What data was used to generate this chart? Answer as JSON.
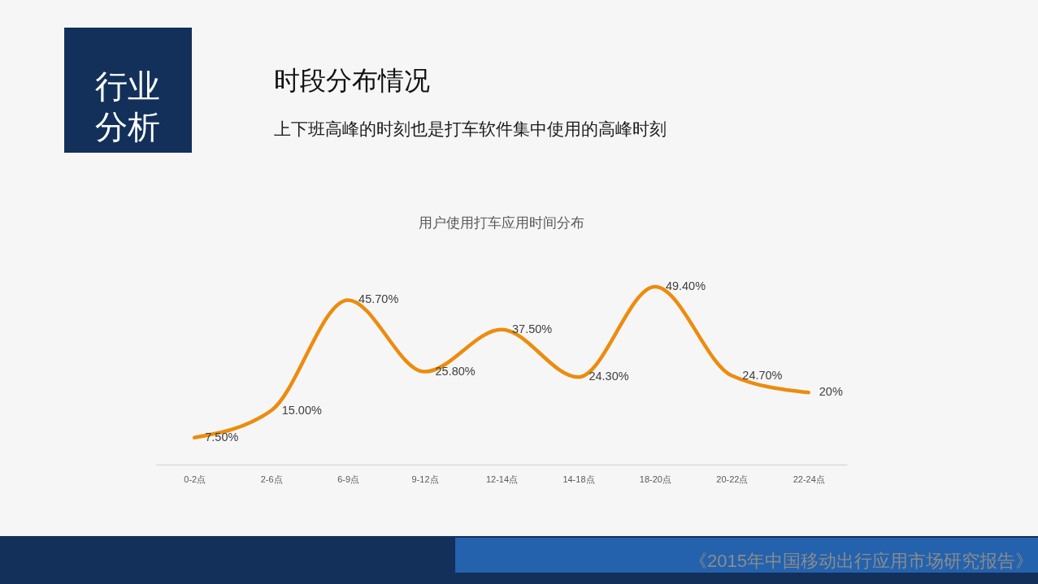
{
  "chart_data": {
    "type": "line",
    "title": "时段分布情况",
    "subtitle": "上下班高峰的时刻也是打车软件集中使用的高峰时刻",
    "annotations": [
      "行业分析",
      "用户使用打车应用时间分布",
      "《2015年中国移动出行应用市场研究报告》"
    ],
    "categories": [
      "0-2点",
      "2-6点",
      "6-9点",
      "9-12点",
      "12-14点",
      "14-18点",
      "18-20点",
      "20-22点",
      "22-24点"
    ],
    "values": [
      7.5,
      15.0,
      45.7,
      25.8,
      37.5,
      24.3,
      49.4,
      24.7,
      20
    ],
    "value_labels": [
      "7.50%",
      "15.00%",
      "45.70%",
      "25.80%",
      "37.50%",
      "24.30%",
      "49.40%",
      "24.70%",
      "20%"
    ],
    "color": "#ec8c0e"
  }
}
